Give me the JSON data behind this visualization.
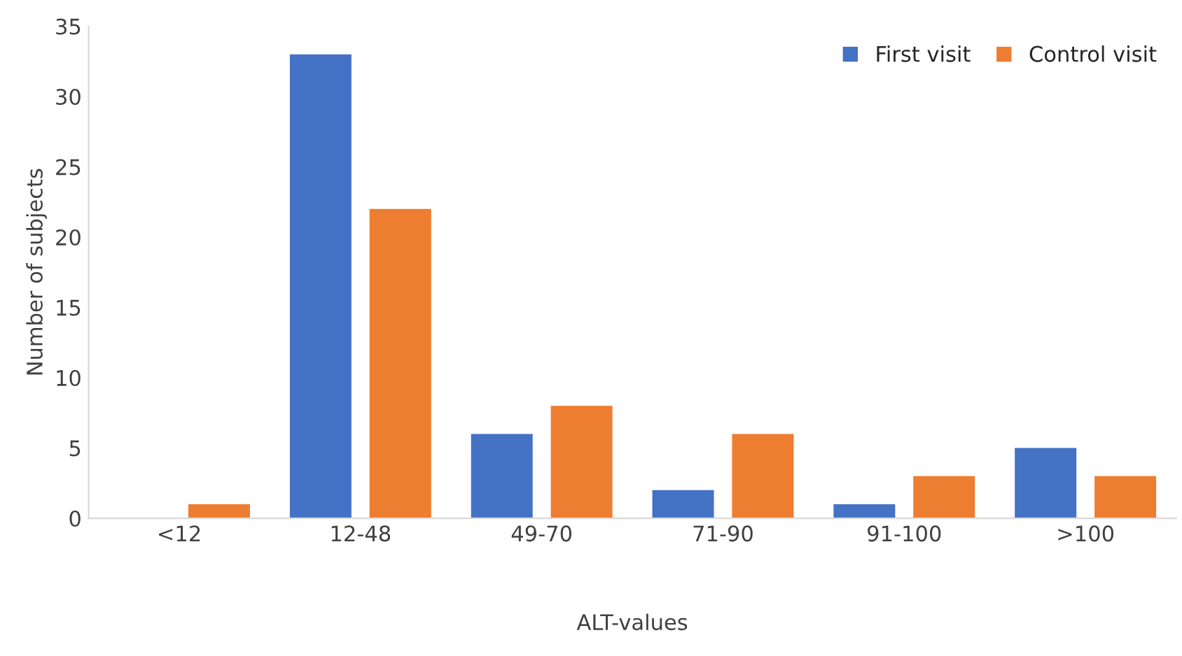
{
  "chart_data": {
    "type": "bar",
    "xlabel": "ALT-values",
    "ylabel": "Number of subjects",
    "categories": [
      "<12",
      "12-48",
      "49-70",
      "71-90",
      "91-100",
      ">100"
    ],
    "series": [
      {
        "name": "First visit",
        "color": "#4472c4",
        "values": [
          0,
          33,
          6,
          2,
          1,
          5
        ]
      },
      {
        "name": "Control visit",
        "color": "#ed7d31",
        "values": [
          1,
          22,
          8,
          6,
          3,
          3
        ]
      }
    ],
    "ylim": [
      0,
      35
    ],
    "yticks": [
      0,
      5,
      10,
      15,
      20,
      25,
      30,
      35
    ],
    "grid": false,
    "legend": "top right"
  }
}
